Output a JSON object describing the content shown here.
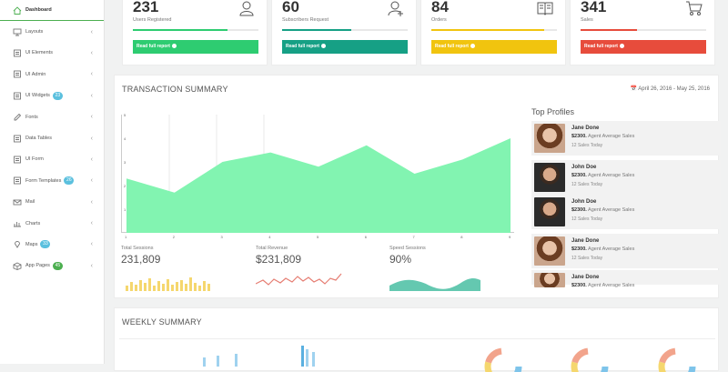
{
  "sidebar": {
    "items": [
      {
        "label": "Dashboard",
        "icon": "home-icon",
        "active": true
      },
      {
        "label": "Layouts",
        "icon": "monitor-icon"
      },
      {
        "label": "UI Elements",
        "icon": "layers-icon"
      },
      {
        "label": "UI Admin",
        "icon": "grid-icon"
      },
      {
        "label": "UI Widgets",
        "icon": "widget-icon",
        "badge": "23",
        "badge_color": "#5bc0de"
      },
      {
        "label": "Fonts",
        "icon": "pencil-icon"
      },
      {
        "label": "Data Tables",
        "icon": "table-icon"
      },
      {
        "label": "UI Form",
        "icon": "form-icon"
      },
      {
        "label": "Form Templates",
        "icon": "template-icon",
        "badge": "26",
        "badge_color": "#5bc0de"
      },
      {
        "label": "Mail",
        "icon": "mail-icon"
      },
      {
        "label": "Charts",
        "icon": "chart-icon"
      },
      {
        "label": "Maps",
        "icon": "map-pin-icon",
        "badge": "33",
        "badge_color": "#5bc0de"
      },
      {
        "label": "App Pages",
        "icon": "cube-icon",
        "badge": "45",
        "badge_color": "#4caf50"
      }
    ]
  },
  "stats": [
    {
      "value": "231",
      "label": "Users Registered",
      "icon": "user-icon",
      "color": "#2ecc71",
      "progress": 0.75,
      "button": "Read full report"
    },
    {
      "value": "60",
      "label": "Subscribers Request",
      "icon": "add-user-icon",
      "color": "#16a085",
      "progress": 0.55,
      "button": "Read full report"
    },
    {
      "value": "84",
      "label": "Orders",
      "icon": "book-icon",
      "color": "#f1c40f",
      "progress": 0.9,
      "button": "Read full report"
    },
    {
      "value": "341",
      "label": "Sales",
      "icon": "cart-icon",
      "color": "#e74c3c",
      "progress": 0.45,
      "button": "Read full report"
    }
  ],
  "transaction": {
    "title": "TRANSACTION SUMMARY",
    "date_range": "April 26, 2016 - May 25, 2016"
  },
  "chart_data": {
    "type": "area",
    "x": [
      "1",
      "2",
      "3",
      "4",
      "5",
      "6",
      "7",
      "8",
      "9"
    ],
    "values": [
      2.3,
      1.7,
      3.0,
      3.4,
      2.8,
      3.7,
      2.5,
      3.1,
      4.0
    ],
    "ylim": [
      0,
      5
    ],
    "y_tick_labels": [
      "1",
      "2",
      "3",
      "4",
      "5"
    ],
    "color": "#82f4b1"
  },
  "sessions": [
    {
      "title": "Total Sessions",
      "value": "231,809",
      "color": "#f5d76e"
    },
    {
      "title": "Total Revenue",
      "value": "$231,809",
      "color": "#e67e73"
    },
    {
      "title": "Speed Sessions",
      "value": "90%",
      "color": "#64c8b0"
    }
  ],
  "profiles": {
    "title": "Top Profiles",
    "items": [
      {
        "name": "Jane Done",
        "amount": "$2300.",
        "amount_text": " Agent Average Sales",
        "sales": "12 Sales Today",
        "gender": "f"
      },
      {
        "name": "John Doe",
        "amount": "$2300.",
        "amount_text": " Agent Average Sales",
        "sales": "12 Sales Today",
        "gender": "m"
      },
      {
        "name": "John Doe",
        "amount": "$2300.",
        "amount_text": " Agent Average Sales",
        "sales": "12 Sales Today",
        "gender": "m"
      },
      {
        "name": "Jane Done",
        "amount": "$2300.",
        "amount_text": " Agent Average Sales",
        "sales": "12 Sales Today",
        "gender": "f"
      },
      {
        "name": "Jane Done",
        "amount": "$2300.",
        "amount_text": " Agent Average Sales",
        "sales": "",
        "gender": "f"
      }
    ]
  },
  "weekly": {
    "title": "WEEKLY SUMMARY"
  }
}
